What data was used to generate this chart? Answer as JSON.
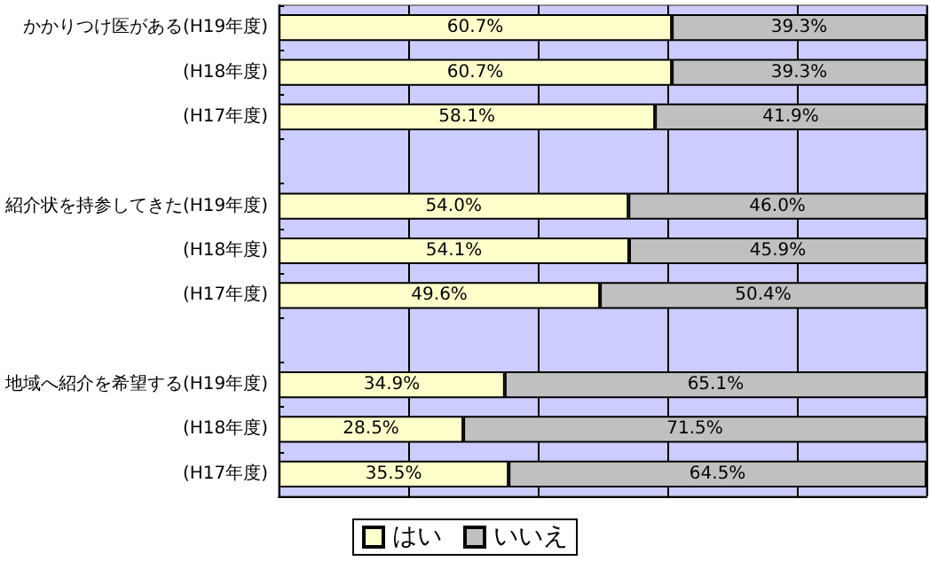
{
  "chart_data": {
    "type": "bar",
    "orientation": "horizontal",
    "stacked": true,
    "categories": [
      "かかりつけ医がある(H19年度)",
      "(H18年度)",
      "(H17年度)",
      null,
      "紹介状を持参してきた(H19年度)",
      "(H18年度)",
      "(H17年度)",
      null,
      "地域へ紹介を希望する(H19年度)",
      "(H18年度)",
      "(H17年度)"
    ],
    "series": [
      {
        "name": "はい",
        "color": "#ffffcc",
        "values": [
          60.7,
          60.7,
          58.1,
          null,
          54.0,
          54.1,
          49.6,
          null,
          34.9,
          28.5,
          35.5
        ],
        "value_labels": [
          "60.7%",
          "60.7%",
          "58.1%",
          null,
          "54.0%",
          "54.1%",
          "49.6%",
          null,
          "34.9%",
          "28.5%",
          "35.5%"
        ]
      },
      {
        "name": "いいえ",
        "color": "#c0c0c0",
        "values": [
          39.3,
          39.3,
          41.9,
          null,
          46.0,
          45.9,
          50.4,
          null,
          65.1,
          71.5,
          64.5
        ],
        "value_labels": [
          "39.3%",
          "39.3%",
          "41.9%",
          null,
          "46.0%",
          "45.9%",
          "50.4%",
          null,
          "65.1%",
          "71.5%",
          "64.5%"
        ]
      }
    ],
    "xlim": [
      0,
      100
    ],
    "xticks": [
      {
        "value": 0,
        "label": null
      },
      {
        "value": 20,
        "label": null
      },
      {
        "value": 40,
        "label": null
      },
      {
        "value": 60,
        "label": null
      },
      {
        "value": 80,
        "label": null
      },
      {
        "value": 100,
        "label": null
      }
    ],
    "tick_labels": "y",
    "grid": "x",
    "legend": "bottom"
  }
}
